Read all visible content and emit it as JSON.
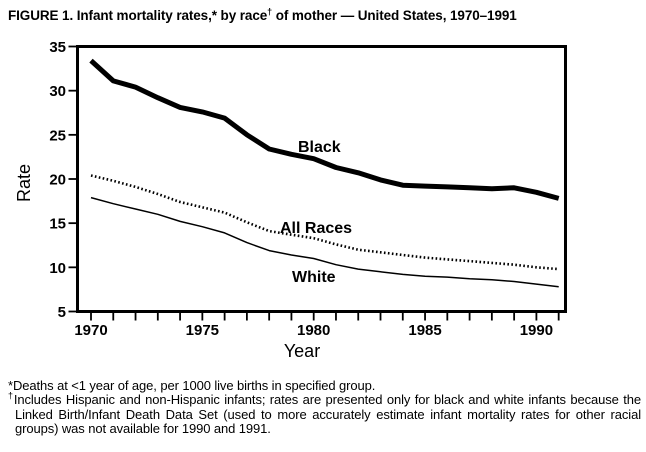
{
  "title": {
    "part1": "FIGURE 1. Infant mortality rates,* by race",
    "dagger": "†",
    "part2": " of mother — United States, 1970–1991"
  },
  "colors": {
    "ink": "#000000",
    "background": "#ffffff"
  },
  "chart_data": {
    "type": "line",
    "title": "Infant mortality rates, by race of mother — United States, 1970–1991",
    "xlabel": "Year",
    "ylabel": "Rate",
    "ylim": [
      5,
      35
    ],
    "yticks": [
      5,
      10,
      15,
      20,
      25,
      30,
      35
    ],
    "xticks_labeled": [
      1970,
      1975,
      1980,
      1985,
      1990
    ],
    "xtick_minor_every_year": true,
    "grid": false,
    "legend_position": "inline labels next to lines",
    "line_color": "#000000",
    "x": [
      1970,
      1971,
      1972,
      1973,
      1974,
      1975,
      1976,
      1977,
      1978,
      1979,
      1980,
      1981,
      1982,
      1983,
      1984,
      1985,
      1986,
      1987,
      1988,
      1989,
      1990,
      1991
    ],
    "series": [
      {
        "name": "Black",
        "line_style": "solid",
        "line_width": "thick",
        "values": [
          33.4,
          31.1,
          30.4,
          29.2,
          28.1,
          27.6,
          26.9,
          25.0,
          23.4,
          22.8,
          22.3,
          21.3,
          20.7,
          19.9,
          19.3,
          19.2,
          19.1,
          19.0,
          18.9,
          19.0,
          18.5,
          17.8
        ]
      },
      {
        "name": "All Races",
        "line_style": "dotted",
        "line_width": "medium",
        "values": [
          20.4,
          19.8,
          19.1,
          18.3,
          17.4,
          16.8,
          16.2,
          15.1,
          14.1,
          13.7,
          13.3,
          12.6,
          12.0,
          11.7,
          11.4,
          11.1,
          10.9,
          10.7,
          10.5,
          10.3,
          10.0,
          9.8
        ]
      },
      {
        "name": "White",
        "line_style": "solid",
        "line_width": "thin",
        "values": [
          17.9,
          17.2,
          16.6,
          16.0,
          15.2,
          14.6,
          13.9,
          12.8,
          11.9,
          11.4,
          11.0,
          10.3,
          9.8,
          9.5,
          9.2,
          9.0,
          8.9,
          8.7,
          8.6,
          8.4,
          8.1,
          7.8
        ]
      }
    ]
  },
  "footnotes": [
    {
      "marker": "*",
      "text": "Deaths at <1 year of age, per 1000 live births in specified group."
    },
    {
      "marker": "†",
      "text": "Includes Hispanic and non-Hispanic infants; rates are presented only for black and white infants because the Linked Birth/Infant Death Data Set (used to more accurately estimate infant mortality rates for other racial groups) was not available for 1990 and 1991."
    }
  ]
}
